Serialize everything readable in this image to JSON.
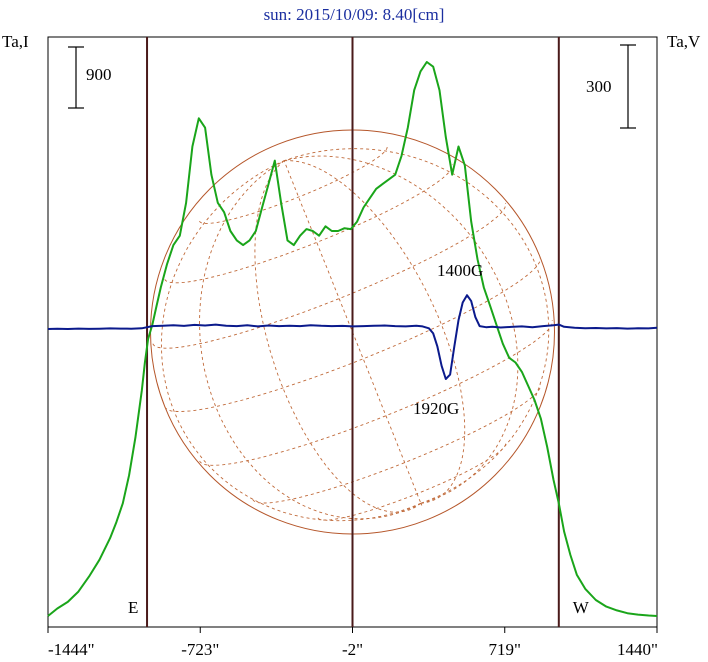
{
  "chart_data": {
    "type": "line",
    "title": "sun: 2015/10/09: 8.40[cm]",
    "y_left_label": "Ta,I",
    "y_right_label": "Ta,V",
    "left_scale_bar": "900",
    "right_scale_bar": "300",
    "x_ticks": [
      "-1444\"",
      "-723\"",
      "-2\"",
      "719\"",
      "1440\""
    ],
    "x_tick_values": [
      -1444,
      -723,
      -2,
      719,
      1440
    ],
    "xlim": [
      -1444,
      1440
    ],
    "limb_labels": [
      "E",
      "W"
    ],
    "limb_positions": [
      -975,
      975
    ],
    "vertical_lines": [
      -975,
      -2,
      975
    ],
    "grid": false,
    "annotations": [
      {
        "text": "1400G",
        "x": 540
      },
      {
        "text": "1920G",
        "x": 440
      }
    ],
    "series": [
      {
        "name": "Ta,I",
        "color": "#1aa51a",
        "x": [
          -1444,
          -1400,
          -1350,
          -1300,
          -1250,
          -1200,
          -1150,
          -1120,
          -1090,
          -1060,
          -1030,
          -1000,
          -985,
          -970,
          -950,
          -930,
          -910,
          -880,
          -850,
          -820,
          -790,
          -760,
          -730,
          -700,
          -670,
          -640,
          -610,
          -580,
          -550,
          -520,
          -490,
          -460,
          -430,
          -400,
          -370,
          -340,
          -310,
          -280,
          -250,
          -220,
          -190,
          -160,
          -130,
          -100,
          -70,
          -40,
          -10,
          20,
          50,
          80,
          110,
          140,
          170,
          200,
          230,
          260,
          290,
          320,
          350,
          380,
          410,
          440,
          470,
          500,
          530,
          560,
          590,
          620,
          650,
          680,
          710,
          740,
          770,
          800,
          830,
          860,
          890,
          920,
          950,
          975,
          1000,
          1030,
          1060,
          1100,
          1150,
          1200,
          1250,
          1300,
          1350,
          1400,
          1440
        ],
        "y": [
          0,
          80,
          150,
          260,
          420,
          600,
          830,
          1000,
          1200,
          1500,
          1900,
          2400,
          2700,
          2950,
          3100,
          3300,
          3500,
          3750,
          3950,
          4050,
          4400,
          5000,
          5300,
          5200,
          4700,
          4400,
          4300,
          4100,
          4000,
          3950,
          4000,
          4100,
          4350,
          4600,
          4850,
          4400,
          4000,
          3950,
          4050,
          4120,
          4100,
          4050,
          4150,
          4100,
          4100,
          4130,
          4120,
          4200,
          4350,
          4450,
          4550,
          4600,
          4650,
          4700,
          4900,
          5200,
          5600,
          5800,
          5900,
          5850,
          5600,
          5100,
          4700,
          5000,
          4800,
          4200,
          3800,
          3500,
          3300,
          3100,
          2900,
          2750,
          2700,
          2600,
          2450,
          2300,
          2100,
          1800,
          1450,
          1200,
          900,
          650,
          440,
          290,
          170,
          100,
          60,
          30,
          15,
          5,
          0
        ]
      },
      {
        "name": "Ta,V",
        "color": "#0b1a8c",
        "x": [
          -1444,
          -1400,
          -1350,
          -1300,
          -1250,
          -1200,
          -1150,
          -1100,
          -1050,
          -1000,
          -950,
          -900,
          -850,
          -800,
          -750,
          -700,
          -650,
          -600,
          -550,
          -500,
          -450,
          -400,
          -350,
          -300,
          -250,
          -200,
          -150,
          -100,
          -50,
          0,
          50,
          100,
          150,
          200,
          250,
          300,
          330,
          360,
          380,
          400,
          420,
          440,
          460,
          480,
          500,
          520,
          540,
          560,
          580,
          600,
          630,
          660,
          700,
          750,
          800,
          850,
          900,
          950,
          975,
          1000,
          1050,
          1100,
          1150,
          1200,
          1250,
          1300,
          1350,
          1400,
          1440
        ],
        "y": [
          0,
          2,
          0,
          3,
          1,
          2,
          4,
          3,
          2,
          5,
          20,
          22,
          25,
          21,
          28,
          24,
          30,
          22,
          20,
          25,
          18,
          24,
          20,
          22,
          20,
          26,
          22,
          20,
          21,
          18,
          20,
          22,
          24,
          20,
          18,
          22,
          18,
          5,
          -30,
          -120,
          -250,
          -340,
          -310,
          -120,
          60,
          180,
          230,
          190,
          80,
          20,
          12,
          15,
          10,
          14,
          18,
          12,
          20,
          25,
          30,
          15,
          8,
          5,
          7,
          4,
          6,
          3,
          5,
          4,
          8
        ]
      }
    ]
  }
}
